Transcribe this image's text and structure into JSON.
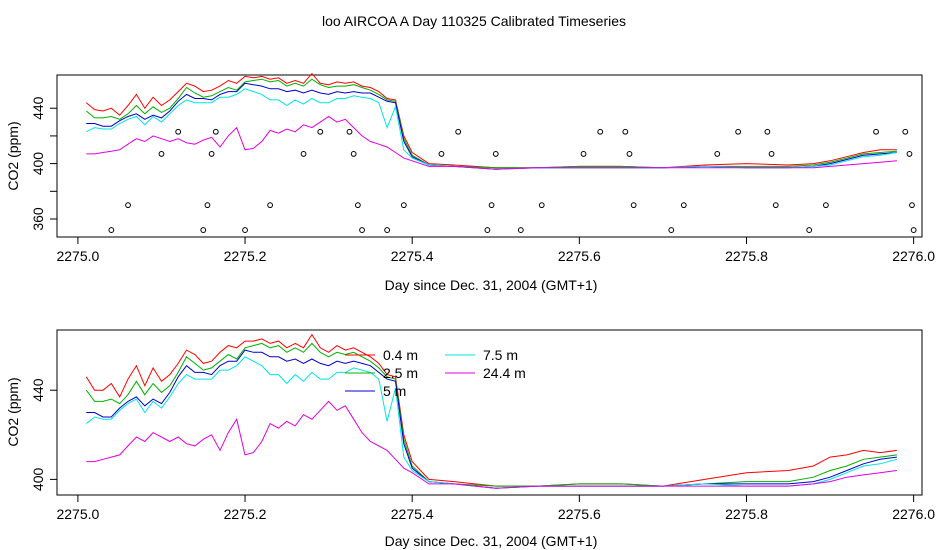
{
  "figure": {
    "title": "loo AIRCOA A  Day 110325  Calibrated Timeseries"
  },
  "colors": {
    "0.4 m": "#ff0000",
    "2.5 m": "#00b000",
    "5 m": "#0000cc",
    "7.5 m": "#00e5e5",
    "24.4 m": "#e000e0",
    "points": "#000000"
  },
  "chart_data": [
    {
      "type": "line",
      "title": "",
      "xlabel": "Day since Dec. 31, 2004 (GMT+1)",
      "ylabel": "CO2 (ppm)",
      "xlim": [
        2274.975,
        2276.01
      ],
      "ylim": [
        347,
        464
      ],
      "xticks": [
        2275.0,
        2275.2,
        2275.4,
        2275.6,
        2275.8,
        2276.0
      ],
      "xtick_labels": [
        "2275.0",
        "2275.2",
        "2275.4",
        "2275.6",
        "2275.8",
        "2276.0"
      ],
      "yticks": [
        360,
        380,
        400,
        420,
        440
      ],
      "ytick_labels": [
        "360",
        "",
        "400",
        "",
        "440"
      ],
      "x": [
        2275.01,
        2275.02,
        2275.03,
        2275.04,
        2275.05,
        2275.06,
        2275.07,
        2275.08,
        2275.09,
        2275.1,
        2275.11,
        2275.12,
        2275.13,
        2275.14,
        2275.15,
        2275.16,
        2275.17,
        2275.18,
        2275.19,
        2275.2,
        2275.21,
        2275.22,
        2275.23,
        2275.24,
        2275.25,
        2275.26,
        2275.27,
        2275.28,
        2275.29,
        2275.3,
        2275.31,
        2275.32,
        2275.33,
        2275.34,
        2275.35,
        2275.36,
        2275.37,
        2275.38,
        2275.39,
        2275.4,
        2275.42,
        2275.45,
        2275.5,
        2275.55,
        2275.6,
        2275.65,
        2275.7,
        2275.75,
        2275.8,
        2275.85,
        2275.88,
        2275.9,
        2275.92,
        2275.94,
        2275.96,
        2275.98
      ],
      "series": [
        {
          "name": "0.4 m",
          "values": [
            444,
            439,
            438,
            440,
            435,
            442,
            450,
            440,
            448,
            442,
            446,
            452,
            458,
            456,
            452,
            453,
            456,
            460,
            458,
            463,
            462,
            463,
            461,
            462,
            458,
            460,
            458,
            465,
            458,
            457,
            459,
            458,
            459,
            456,
            455,
            452,
            447,
            446,
            420,
            408,
            400,
            399,
            397,
            397,
            398,
            398,
            397,
            399,
            400,
            399,
            400,
            402,
            405,
            408,
            410,
            410
          ]
        },
        {
          "name": "2.5 m",
          "values": [
            438,
            433,
            433,
            434,
            432,
            436,
            442,
            436,
            441,
            437,
            440,
            447,
            455,
            451,
            448,
            449,
            452,
            455,
            453,
            459,
            460,
            461,
            459,
            460,
            456,
            458,
            456,
            461,
            457,
            455,
            456,
            456,
            457,
            455,
            453,
            450,
            446,
            445,
            418,
            406,
            399,
            398,
            397,
            397,
            398,
            398,
            397,
            398,
            398,
            398,
            399,
            401,
            404,
            407,
            408,
            409
          ]
        },
        {
          "name": "5 m",
          "values": [
            429,
            429,
            427,
            427,
            431,
            434,
            436,
            432,
            435,
            433,
            438,
            445,
            450,
            447,
            447,
            446,
            450,
            452,
            452,
            458,
            457,
            456,
            454,
            454,
            452,
            453,
            451,
            453,
            451,
            450,
            452,
            451,
            452,
            451,
            451,
            448,
            445,
            444,
            416,
            405,
            399,
            398,
            396,
            397,
            397,
            397,
            397,
            398,
            397,
            397,
            398,
            400,
            403,
            406,
            407,
            408
          ]
        },
        {
          "name": "7.5 m",
          "values": [
            423,
            426,
            425,
            425,
            429,
            432,
            434,
            428,
            434,
            430,
            436,
            442,
            446,
            444,
            444,
            444,
            448,
            448,
            450,
            454,
            452,
            450,
            446,
            446,
            442,
            446,
            443,
            447,
            444,
            444,
            447,
            447,
            449,
            448,
            447,
            444,
            426,
            441,
            410,
            404,
            399,
            398,
            396,
            397,
            397,
            397,
            397,
            398,
            397,
            397,
            398,
            399,
            402,
            405,
            406,
            408
          ]
        },
        {
          "name": "24.4 m",
          "values": [
            407,
            407,
            408,
            409,
            410,
            414,
            418,
            416,
            420,
            418,
            416,
            418,
            415,
            414,
            417,
            419,
            412,
            420,
            426,
            410,
            411,
            416,
            424,
            422,
            425,
            423,
            428,
            426,
            430,
            434,
            430,
            432,
            426,
            420,
            416,
            414,
            412,
            408,
            404,
            402,
            398,
            398,
            396,
            397,
            397,
            397,
            397,
            397,
            397,
            397,
            397,
            398,
            399,
            400,
            401,
            402
          ]
        }
      ],
      "points": {
        "x": [
          2275.04,
          2275.06,
          2275.1,
          2275.12,
          2275.15,
          2275.155,
          2275.16,
          2275.165,
          2275.2,
          2275.23,
          2275.27,
          2275.29,
          2275.325,
          2275.33,
          2275.335,
          2275.34,
          2275.37,
          2275.39,
          2275.435,
          2275.455,
          2275.49,
          2275.495,
          2275.5,
          2275.53,
          2275.555,
          2275.605,
          2275.625,
          2275.655,
          2275.66,
          2275.665,
          2275.71,
          2275.725,
          2275.765,
          2275.79,
          2275.825,
          2275.83,
          2275.835,
          2275.875,
          2275.895,
          2275.955,
          2275.99,
          2275.995,
          2275.998,
          2276.0
        ],
        "y": [
          352,
          370,
          407,
          423,
          352,
          370,
          407,
          423,
          352,
          370,
          407,
          423,
          423,
          407,
          370,
          352,
          352,
          370,
          407,
          423,
          352,
          370,
          407,
          352,
          370,
          407,
          423,
          423,
          407,
          370,
          352,
          370,
          407,
          423,
          423,
          407,
          370,
          352,
          370,
          423,
          423,
          407,
          370,
          352
        ]
      }
    },
    {
      "type": "line",
      "title": "",
      "xlabel": "Day since Dec. 31, 2004 (GMT+1)",
      "ylabel": "CO2 (ppm)",
      "xlim": [
        2274.975,
        2276.01
      ],
      "ylim": [
        393,
        467
      ],
      "xticks": [
        2275.0,
        2275.2,
        2275.4,
        2275.6,
        2275.8,
        2276.0
      ],
      "xtick_labels": [
        "2275.0",
        "2275.2",
        "2275.4",
        "2275.6",
        "2275.8",
        "2276.0"
      ],
      "yticks": [
        400,
        440
      ],
      "ytick_labels": [
        "400",
        "440"
      ],
      "legend": {
        "placement": "top-center",
        "entries": [
          "0.4 m",
          "2.5 m",
          "5 m",
          "7.5 m",
          "24.4 m"
        ]
      },
      "x": [
        2275.01,
        2275.02,
        2275.03,
        2275.04,
        2275.05,
        2275.06,
        2275.07,
        2275.08,
        2275.09,
        2275.1,
        2275.11,
        2275.12,
        2275.13,
        2275.14,
        2275.15,
        2275.16,
        2275.17,
        2275.18,
        2275.19,
        2275.2,
        2275.21,
        2275.22,
        2275.23,
        2275.24,
        2275.25,
        2275.26,
        2275.27,
        2275.28,
        2275.29,
        2275.3,
        2275.31,
        2275.32,
        2275.33,
        2275.34,
        2275.35,
        2275.36,
        2275.37,
        2275.38,
        2275.39,
        2275.4,
        2275.42,
        2275.45,
        2275.5,
        2275.55,
        2275.6,
        2275.65,
        2275.7,
        2275.75,
        2275.8,
        2275.85,
        2275.88,
        2275.9,
        2275.92,
        2275.94,
        2275.96,
        2275.98
      ],
      "series": [
        {
          "name": "0.4 m",
          "values": [
            446,
            440,
            440,
            443,
            437,
            445,
            451,
            442,
            450,
            444,
            447,
            452,
            458,
            456,
            452,
            453,
            457,
            460,
            459,
            462,
            462,
            463,
            461,
            462,
            459,
            461,
            459,
            465,
            459,
            457,
            460,
            458,
            459,
            457,
            455,
            452,
            447,
            446,
            420,
            408,
            400,
            399,
            397,
            397,
            398,
            398,
            397,
            400,
            403,
            404,
            406,
            410,
            411,
            413,
            412,
            413
          ]
        },
        {
          "name": "2.5 m",
          "values": [
            440,
            435,
            435,
            436,
            434,
            438,
            444,
            438,
            443,
            439,
            442,
            448,
            455,
            452,
            449,
            450,
            453,
            456,
            454,
            459,
            460,
            461,
            459,
            460,
            457,
            459,
            457,
            461,
            457,
            455,
            457,
            456,
            457,
            455,
            453,
            450,
            446,
            445,
            418,
            406,
            399,
            398,
            397,
            397,
            398,
            398,
            397,
            398,
            399,
            399,
            401,
            404,
            406,
            409,
            410,
            411
          ]
        },
        {
          "name": "5 m",
          "values": [
            430,
            430,
            428,
            428,
            432,
            435,
            437,
            433,
            436,
            434,
            439,
            446,
            451,
            448,
            448,
            447,
            451,
            453,
            453,
            458,
            457,
            457,
            455,
            455,
            453,
            454,
            452,
            454,
            452,
            451,
            453,
            452,
            453,
            452,
            451,
            448,
            445,
            444,
            416,
            405,
            399,
            398,
            396,
            397,
            397,
            397,
            397,
            398,
            398,
            398,
            399,
            401,
            404,
            407,
            409,
            410
          ]
        },
        {
          "name": "7.5 m",
          "values": [
            425,
            428,
            427,
            427,
            431,
            434,
            436,
            430,
            435,
            432,
            437,
            443,
            447,
            445,
            445,
            445,
            449,
            449,
            451,
            455,
            453,
            451,
            447,
            447,
            443,
            447,
            444,
            448,
            445,
            445,
            448,
            448,
            450,
            449,
            448,
            445,
            426,
            441,
            410,
            404,
            399,
            398,
            396,
            397,
            397,
            397,
            397,
            398,
            397,
            397,
            398,
            400,
            403,
            406,
            407,
            409
          ]
        },
        {
          "name": "24.4 m",
          "values": [
            408,
            408,
            409,
            410,
            411,
            415,
            419,
            417,
            421,
            419,
            417,
            419,
            416,
            415,
            418,
            420,
            413,
            421,
            427,
            411,
            412,
            417,
            425,
            423,
            426,
            424,
            429,
            427,
            431,
            435,
            431,
            433,
            427,
            421,
            417,
            415,
            413,
            409,
            405,
            403,
            398,
            398,
            396,
            397,
            397,
            397,
            397,
            397,
            397,
            397,
            398,
            399,
            401,
            402,
            403,
            404
          ]
        }
      ]
    }
  ]
}
